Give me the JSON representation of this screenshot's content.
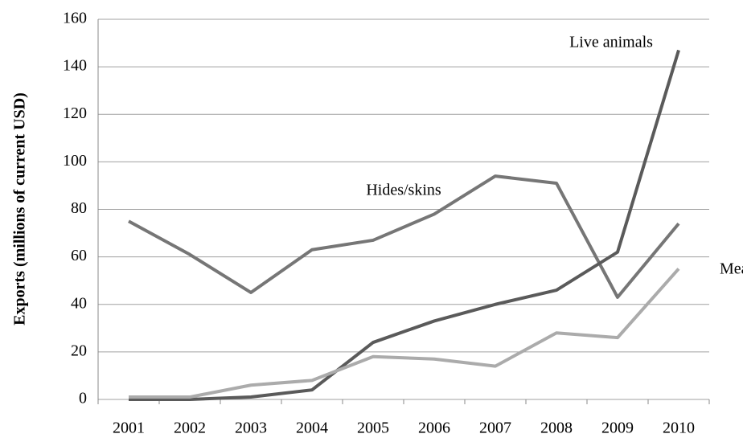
{
  "chart_data": {
    "type": "line",
    "y_label": "Exports (millions  of current USD)",
    "categories": [
      "2001",
      "2002",
      "2003",
      "2004",
      "2005",
      "2006",
      "2007",
      "2008",
      "2009",
      "2010"
    ],
    "series": [
      {
        "name": "Hides/skins",
        "color": "#767676",
        "values": [
          75,
          61,
          45,
          63,
          67,
          78,
          94,
          91,
          43,
          74
        ]
      },
      {
        "name": "Live animals",
        "color": "#5a5a5a",
        "values": [
          0,
          0,
          1,
          4,
          24,
          33,
          40,
          46,
          62,
          147
        ]
      },
      {
        "name": "Meat",
        "color": "#ababab",
        "values": [
          1,
          1,
          6,
          8,
          18,
          17,
          14,
          28,
          26,
          55
        ]
      }
    ],
    "ylim": [
      0,
      160
    ],
    "yticks": [
      0,
      20,
      40,
      60,
      80,
      100,
      120,
      140,
      160
    ],
    "grid": true
  }
}
